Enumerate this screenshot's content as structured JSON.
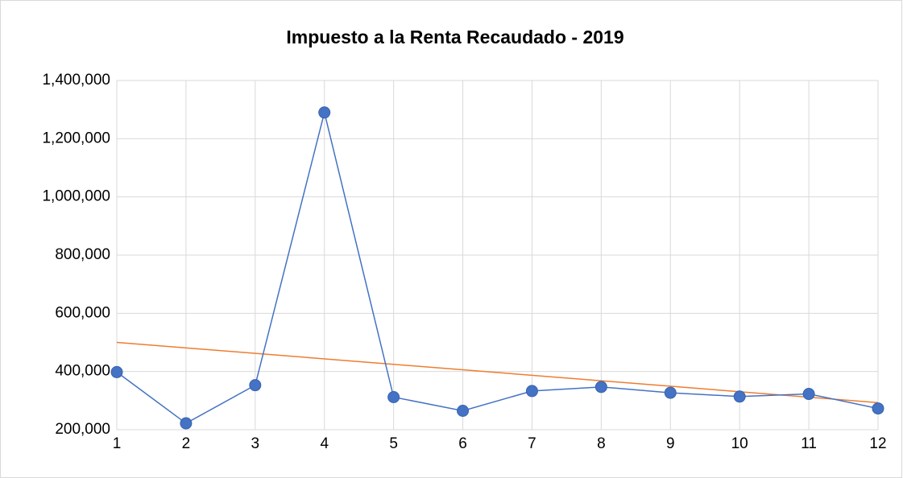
{
  "chart_data": {
    "type": "line",
    "title": "Impuesto a la Renta Recaudado - 2019",
    "x": [
      1,
      2,
      3,
      4,
      5,
      6,
      7,
      8,
      9,
      10,
      11,
      12
    ],
    "values": [
      398000,
      222000,
      353000,
      1290000,
      312000,
      265000,
      333000,
      347000,
      327000,
      314000,
      323000,
      273000
    ],
    "color": "#4472c4",
    "trendline": {
      "color": "#ed7d31",
      "x": [
        1,
        12
      ],
      "values": [
        500000,
        293000
      ]
    },
    "xlim": [
      1,
      12
    ],
    "xticks": [
      1,
      2,
      3,
      4,
      5,
      6,
      7,
      8,
      9,
      10,
      11,
      12
    ],
    "ylim": [
      200000,
      1400000
    ],
    "yticks": [
      {
        "value": 200000,
        "label": "200,000"
      },
      {
        "value": 400000,
        "label": "400,000"
      },
      {
        "value": 600000,
        "label": "600,000"
      },
      {
        "value": 800000,
        "label": "800,000"
      },
      {
        "value": 1000000,
        "label": "1,000,000"
      },
      {
        "value": 1200000,
        "label": "1,200,000"
      },
      {
        "value": 1400000,
        "label": "1,400,000"
      }
    ],
    "grid": true
  }
}
